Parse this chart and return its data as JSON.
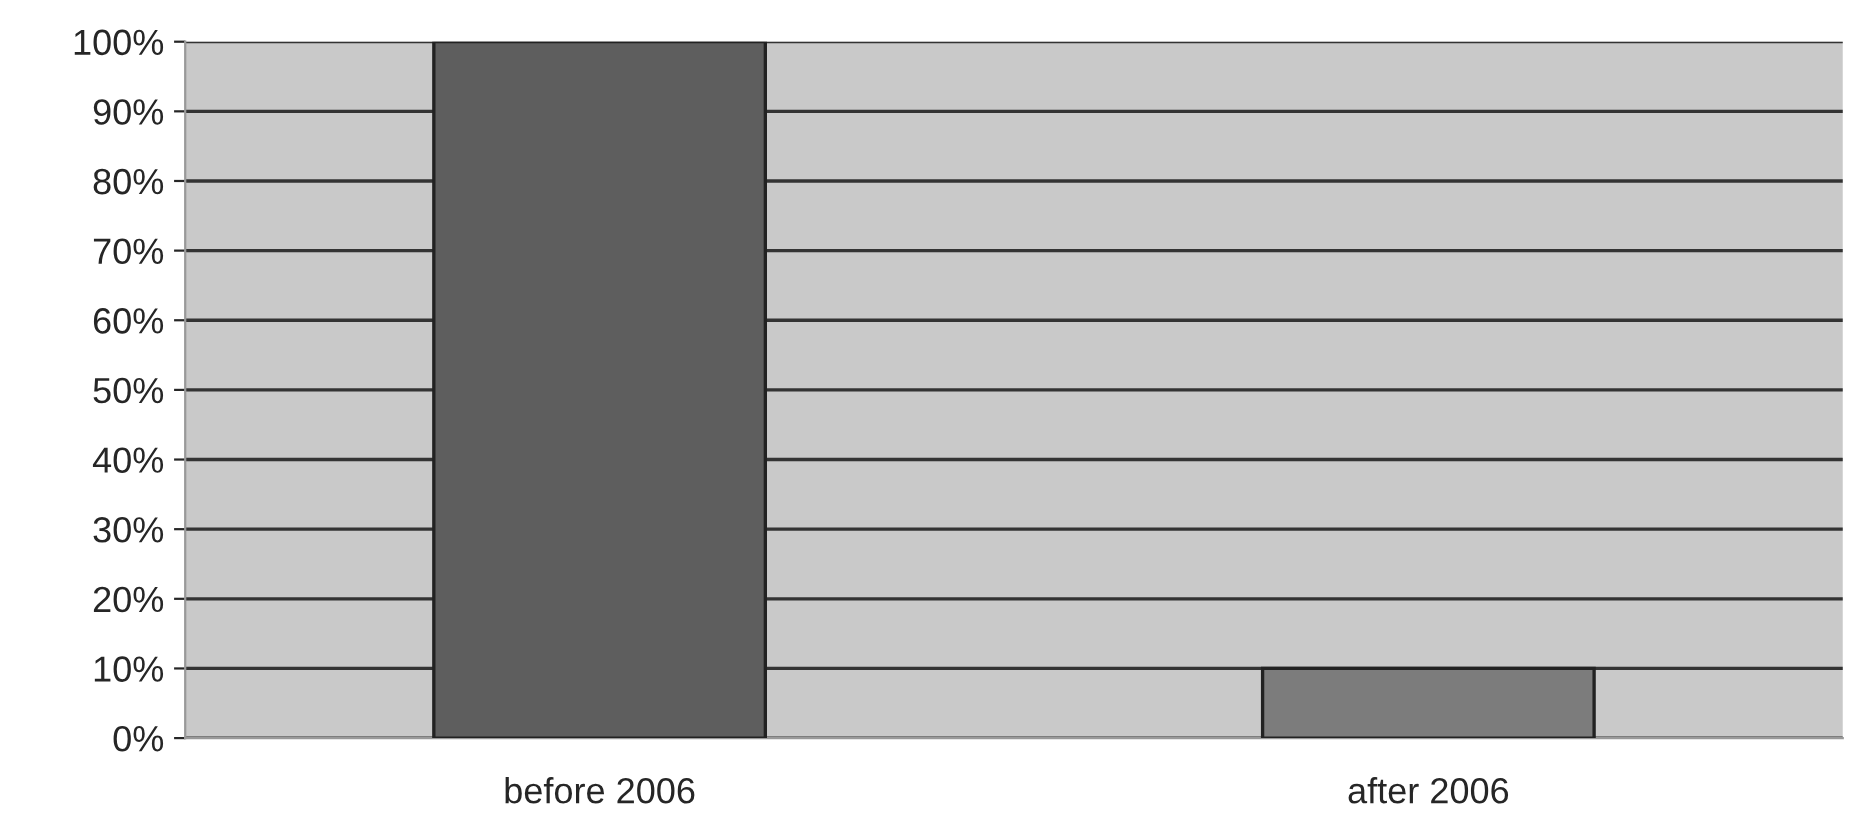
{
  "chart_data": {
    "type": "bar",
    "categories": [
      "before 2006",
      "after 2006"
    ],
    "values": [
      100,
      10
    ],
    "colors": [
      "#5e5e5e",
      "#7c7c7c"
    ],
    "ylim": [
      0,
      100
    ],
    "yticks": [
      {
        "value": 0,
        "label": "0%"
      },
      {
        "value": 10,
        "label": "10%"
      },
      {
        "value": 20,
        "label": "20%"
      },
      {
        "value": 30,
        "label": "30%"
      },
      {
        "value": 40,
        "label": "40%"
      },
      {
        "value": 50,
        "label": "50%"
      },
      {
        "value": 60,
        "label": "60%"
      },
      {
        "value": 70,
        "label": "70%"
      },
      {
        "value": 80,
        "label": "80%"
      },
      {
        "value": 90,
        "label": "90%"
      },
      {
        "value": 100,
        "label": "100%"
      }
    ],
    "grid": "y"
  }
}
